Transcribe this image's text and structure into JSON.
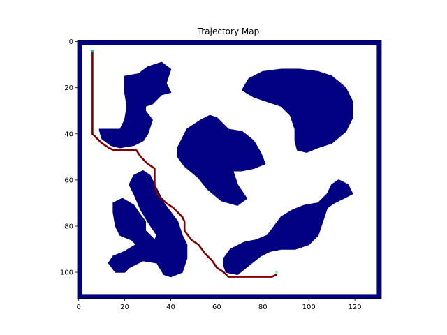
{
  "chart_data": {
    "type": "heatmap",
    "title": "Trajectory Map",
    "xlabel": "",
    "ylabel": "",
    "grid": false,
    "legend": "none",
    "x_range": [
      0,
      132
    ],
    "y_range": [
      112,
      0
    ],
    "x_ticks": [
      0,
      20,
      40,
      60,
      80,
      100,
      120
    ],
    "y_ticks": [
      0,
      20,
      40,
      60,
      80,
      100
    ],
    "colors": {
      "free": "#ffffff",
      "obstacle": "#000080",
      "path": "#800000",
      "start": "#1fb8c8",
      "goal": "#7df07d"
    },
    "border_thickness": 2,
    "obstacles": [
      {
        "name": "top-left-blob",
        "outline": [
          [
            20,
            15
          ],
          [
            26,
            14
          ],
          [
            30,
            11
          ],
          [
            36,
            9
          ],
          [
            40,
            12
          ],
          [
            38,
            18
          ],
          [
            40,
            22
          ],
          [
            36,
            23
          ],
          [
            32,
            27
          ],
          [
            29,
            28
          ],
          [
            29,
            30
          ],
          [
            32,
            34
          ],
          [
            30,
            40
          ],
          [
            28,
            43
          ],
          [
            24,
            45
          ],
          [
            18,
            46
          ],
          [
            14,
            45
          ],
          [
            10,
            42
          ],
          [
            9,
            38
          ],
          [
            14,
            38
          ],
          [
            18,
            38
          ],
          [
            20,
            34
          ],
          [
            21,
            28
          ],
          [
            20,
            22
          ]
        ]
      },
      {
        "name": "center-blob",
        "outline": [
          [
            43,
            46
          ],
          [
            47,
            38
          ],
          [
            53,
            34
          ],
          [
            57,
            32
          ],
          [
            60,
            33
          ],
          [
            65,
            38
          ],
          [
            71,
            39
          ],
          [
            76,
            43
          ],
          [
            79,
            48
          ],
          [
            81,
            53
          ],
          [
            76,
            55
          ],
          [
            71,
            56
          ],
          [
            67,
            56
          ],
          [
            69,
            62
          ],
          [
            73,
            68
          ],
          [
            69,
            71
          ],
          [
            62,
            69
          ],
          [
            56,
            64
          ],
          [
            52,
            59
          ],
          [
            46,
            54
          ],
          [
            43,
            50
          ]
        ]
      },
      {
        "name": "top-right-blob",
        "outline": [
          [
            71,
            21
          ],
          [
            74,
            16
          ],
          [
            80,
            13
          ],
          [
            88,
            12
          ],
          [
            96,
            12
          ],
          [
            104,
            13
          ],
          [
            110,
            15
          ],
          [
            116,
            20
          ],
          [
            119,
            26
          ],
          [
            119,
            33
          ],
          [
            116,
            39
          ],
          [
            110,
            44
          ],
          [
            104,
            46
          ],
          [
            99,
            48
          ],
          [
            95,
            47
          ],
          [
            94,
            43
          ],
          [
            94,
            38
          ],
          [
            92,
            32
          ],
          [
            88,
            28
          ],
          [
            82,
            26
          ],
          [
            76,
            24
          ]
        ]
      },
      {
        "name": "left-lower-blob",
        "outline": [
          [
            15,
            70
          ],
          [
            19,
            68
          ],
          [
            24,
            71
          ],
          [
            26,
            74
          ],
          [
            29,
            78
          ],
          [
            29,
            82
          ],
          [
            33,
            86
          ],
          [
            34,
            84
          ],
          [
            30,
            78
          ],
          [
            27,
            73
          ],
          [
            24,
            66
          ],
          [
            22,
            62
          ],
          [
            24,
            58
          ],
          [
            28,
            56
          ],
          [
            31,
            58
          ],
          [
            34,
            64
          ],
          [
            37,
            70
          ],
          [
            40,
            74
          ],
          [
            43,
            78
          ],
          [
            45,
            84
          ],
          [
            47,
            88
          ],
          [
            47,
            94
          ],
          [
            45,
            100
          ],
          [
            40,
            102
          ],
          [
            37,
            101
          ],
          [
            34,
            96
          ],
          [
            28,
            95
          ],
          [
            22,
            98
          ],
          [
            20,
            100
          ],
          [
            16,
            100
          ],
          [
            13,
            96
          ],
          [
            15,
            93
          ],
          [
            20,
            91
          ],
          [
            25,
            88
          ],
          [
            23,
            86
          ],
          [
            18,
            84
          ],
          [
            16,
            80
          ],
          [
            15,
            74
          ]
        ]
      },
      {
        "name": "bottom-right-blob",
        "outline": [
          [
            63,
            94
          ],
          [
            66,
            90
          ],
          [
            72,
            87
          ],
          [
            77,
            86
          ],
          [
            82,
            84
          ],
          [
            85,
            80
          ],
          [
            88,
            76
          ],
          [
            93,
            73
          ],
          [
            98,
            71
          ],
          [
            104,
            70
          ],
          [
            108,
            66
          ],
          [
            110,
            62
          ],
          [
            113,
            60
          ],
          [
            117,
            62
          ],
          [
            119,
            66
          ],
          [
            115,
            68
          ],
          [
            111,
            70
          ],
          [
            108,
            72
          ],
          [
            106,
            78
          ],
          [
            104,
            84
          ],
          [
            100,
            88
          ],
          [
            94,
            90
          ],
          [
            88,
            90
          ],
          [
            83,
            91
          ],
          [
            79,
            93
          ],
          [
            74,
            97
          ],
          [
            69,
            101
          ],
          [
            64,
            100
          ],
          [
            63,
            97
          ]
        ]
      }
    ],
    "path": [
      [
        6,
        4
      ],
      [
        6,
        40
      ],
      [
        8,
        42
      ],
      [
        10,
        44
      ],
      [
        13,
        46
      ],
      [
        15,
        47
      ],
      [
        20,
        47
      ],
      [
        25,
        47
      ],
      [
        27,
        50
      ],
      [
        30,
        53
      ],
      [
        33,
        55
      ],
      [
        33,
        58
      ],
      [
        33,
        62
      ],
      [
        34,
        66
      ],
      [
        36,
        68
      ],
      [
        38,
        70
      ],
      [
        41,
        72
      ],
      [
        43,
        74
      ],
      [
        45,
        76
      ],
      [
        46,
        78
      ],
      [
        46,
        82
      ],
      [
        49,
        86
      ],
      [
        52,
        88
      ],
      [
        55,
        92
      ],
      [
        58,
        95
      ],
      [
        60,
        98
      ],
      [
        63,
        100
      ],
      [
        65,
        102
      ],
      [
        70,
        102
      ],
      [
        78,
        102
      ],
      [
        84,
        102
      ],
      [
        86,
        101
      ]
    ],
    "start": [
      6,
      4
    ],
    "goal": [
      86,
      100
    ]
  }
}
